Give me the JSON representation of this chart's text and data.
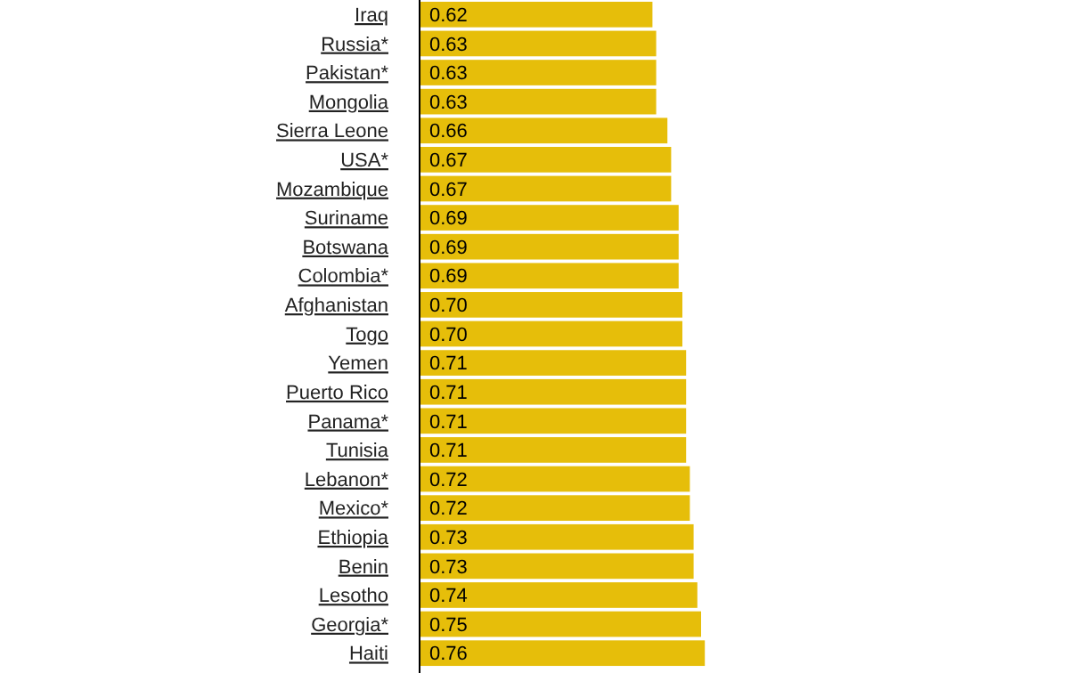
{
  "chart_data": {
    "type": "bar",
    "orientation": "horizontal",
    "categories": [
      "Iraq",
      "Russia*",
      "Pakistan*",
      "Mongolia",
      "Sierra Leone",
      "USA*",
      "Mozambique",
      "Suriname",
      "Botswana",
      "Colombia*",
      "Afghanistan",
      "Togo",
      "Yemen",
      "Puerto Rico",
      "Panama*",
      "Tunisia",
      "Lebanon*",
      "Mexico*",
      "Ethiopia",
      "Benin",
      "Lesotho",
      "Georgia*",
      "Haiti"
    ],
    "values": [
      0.62,
      0.63,
      0.63,
      0.63,
      0.66,
      0.67,
      0.67,
      0.69,
      0.69,
      0.69,
      0.7,
      0.7,
      0.71,
      0.71,
      0.71,
      0.71,
      0.72,
      0.72,
      0.73,
      0.73,
      0.74,
      0.75,
      0.76
    ],
    "value_labels": [
      "0.62",
      "0.63",
      "0.63",
      "0.63",
      "0.66",
      "0.67",
      "0.67",
      "0.69",
      "0.69",
      "0.69",
      "0.70",
      "0.70",
      "0.71",
      "0.71",
      "0.71",
      "0.71",
      "0.72",
      "0.72",
      "0.73",
      "0.73",
      "0.74",
      "0.75",
      "0.76"
    ],
    "color": "#e6be0a",
    "tick_labels": "y"
  }
}
